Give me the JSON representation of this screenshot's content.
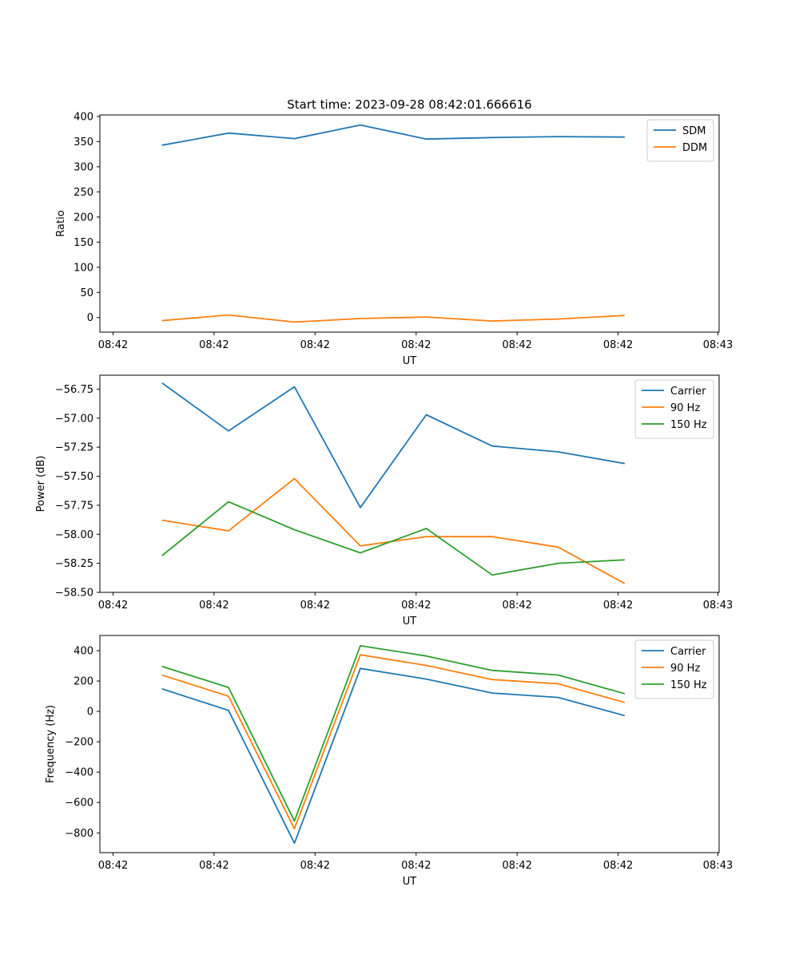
{
  "figure_title": "Start time: 2023-09-28 08:42:01.666616",
  "chart_data": [
    {
      "type": "line",
      "title": "Start time: 2023-09-28 08:42:01.666616",
      "xlabel": "UT",
      "ylabel": "Ratio",
      "x_tick_labels": [
        "08:42",
        "08:42",
        "08:42",
        "08:42",
        "08:42",
        "08:42",
        "08:43"
      ],
      "y_ticks": [
        0,
        50,
        100,
        150,
        200,
        250,
        300,
        350,
        400
      ],
      "y_tick_labels": [
        "0",
        "50",
        "100",
        "150",
        "200",
        "250",
        "300",
        "350",
        "400"
      ],
      "ylim": [
        -29,
        403
      ],
      "legend_location": "upper right",
      "series": [
        {
          "name": "SDM",
          "color": "#1f77b4",
          "values": [
            343,
            367,
            356,
            383,
            355,
            358,
            360,
            359
          ]
        },
        {
          "name": "DDM",
          "color": "#ff7f0e",
          "values": [
            -6,
            5,
            -9,
            -2,
            1,
            -7,
            -3,
            4
          ]
        }
      ]
    },
    {
      "type": "line",
      "title": "",
      "xlabel": "UT",
      "ylabel": "Power (dB)",
      "x_tick_labels": [
        "08:42",
        "08:42",
        "08:42",
        "08:42",
        "08:42",
        "08:42",
        "08:43"
      ],
      "y_ticks": [
        -56.75,
        -57.0,
        -57.25,
        -57.5,
        -57.75,
        -58.0,
        -58.25,
        -58.5
      ],
      "y_tick_labels": [
        "−56.75",
        "−57.00",
        "−57.25",
        "−57.50",
        "−57.75",
        "−58.00",
        "−58.25",
        "−58.50"
      ],
      "ylim": [
        -58.5,
        -56.63
      ],
      "legend_location": "upper right",
      "series": [
        {
          "name": "Carrier",
          "color": "#1f77b4",
          "values": [
            -56.7,
            -57.11,
            -56.73,
            -57.77,
            -56.97,
            -57.24,
            -57.29,
            -57.39
          ]
        },
        {
          "name": "90 Hz",
          "color": "#ff7f0e",
          "values": [
            -57.88,
            -57.97,
            -57.52,
            -58.1,
            -58.02,
            -58.02,
            -58.11,
            -58.42
          ]
        },
        {
          "name": "150 Hz",
          "color": "#2ca02c",
          "values": [
            -58.18,
            -57.72,
            -57.96,
            -58.16,
            -57.95,
            -58.35,
            -58.25,
            -58.22
          ]
        }
      ]
    },
    {
      "type": "line",
      "title": "",
      "xlabel": "UT",
      "ylabel": "Frequency (Hz)",
      "x_tick_labels": [
        "08:42",
        "08:42",
        "08:42",
        "08:42",
        "08:42",
        "08:42",
        "08:43"
      ],
      "y_ticks": [
        400,
        200,
        0,
        -200,
        -400,
        -600,
        -800
      ],
      "y_tick_labels": [
        "400",
        "200",
        "0",
        "−200",
        "−400",
        "−600",
        "−800"
      ],
      "ylim": [
        -930,
        500
      ],
      "legend_location": "upper right",
      "series": [
        {
          "name": "Carrier",
          "color": "#1f77b4",
          "values": [
            147,
            7,
            -868,
            283,
            213,
            121,
            92,
            -27
          ]
        },
        {
          "name": "90 Hz",
          "color": "#ff7f0e",
          "values": [
            238,
            100,
            -773,
            373,
            303,
            210,
            182,
            60
          ]
        },
        {
          "name": "150 Hz",
          "color": "#2ca02c",
          "values": [
            295,
            158,
            -722,
            432,
            365,
            270,
            240,
            118
          ]
        }
      ]
    }
  ]
}
